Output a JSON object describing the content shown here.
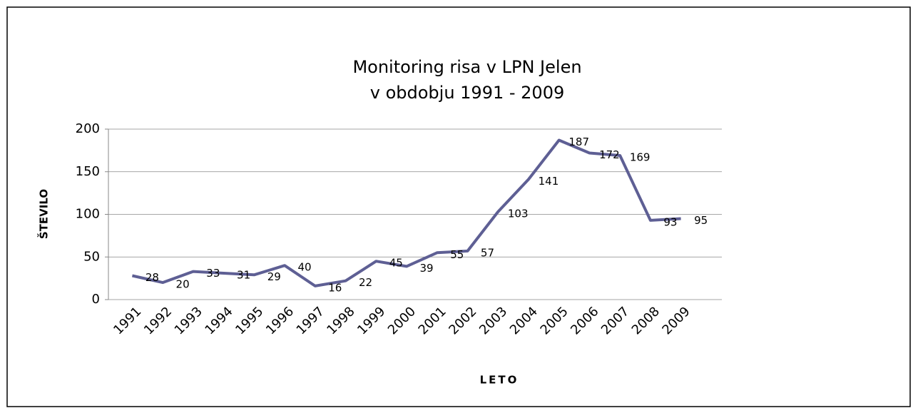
{
  "chart_data": {
    "type": "line",
    "title": "Monitoring risa v LPN Jelen",
    "subtitle": "v obdobju 1991 - 2009",
    "x_label": "LETO",
    "y_label": "ŠTEVILO",
    "categories": [
      "1991",
      "1992",
      "1993",
      "1994",
      "1995",
      "1996",
      "1997",
      "1998",
      "1999",
      "2000",
      "2001",
      "2002",
      "2003",
      "2004",
      "2005",
      "2006",
      "2007",
      "2008",
      "2009"
    ],
    "values": [
      28,
      20,
      33,
      31,
      29,
      40,
      16,
      22,
      45,
      39,
      55,
      57,
      103,
      141,
      187,
      172,
      169,
      93,
      95
    ],
    "color": "#5e5f94",
    "ylim": [
      0,
      200
    ],
    "yticks": [
      0,
      50,
      100,
      150,
      200
    ],
    "grid": true
  }
}
